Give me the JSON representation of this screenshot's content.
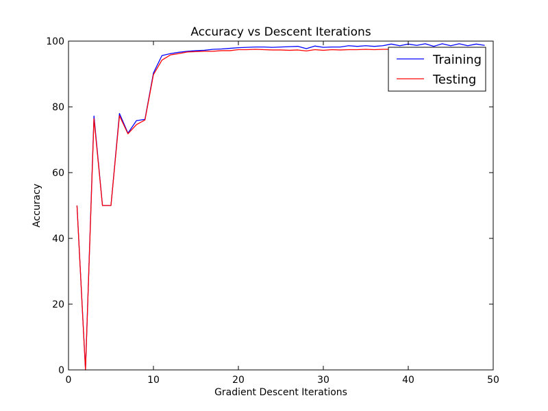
{
  "chart_data": {
    "type": "line",
    "title": "Accuracy vs Descent Iterations",
    "xlabel": "Gradient Descent Iterations",
    "ylabel": "Accuracy",
    "xlim": [
      0,
      50
    ],
    "ylim": [
      0,
      100
    ],
    "xticks": [
      0,
      10,
      20,
      30,
      40,
      50
    ],
    "yticks": [
      0,
      20,
      40,
      60,
      80,
      100
    ],
    "grid": false,
    "legend_position": "top-right",
    "x": [
      1,
      2,
      3,
      4,
      5,
      6,
      7,
      8,
      9,
      10,
      11,
      12,
      13,
      14,
      15,
      16,
      17,
      18,
      19,
      20,
      21,
      22,
      23,
      24,
      25,
      26,
      27,
      28,
      29,
      30,
      31,
      32,
      33,
      34,
      35,
      36,
      37,
      38,
      39,
      40,
      41,
      42,
      43,
      44,
      45,
      46,
      47,
      48,
      49
    ],
    "series": [
      {
        "name": "Training",
        "color": "#0000ff",
        "values": [
          50,
          0,
          77.2,
          50,
          50,
          78,
          72,
          75.8,
          76.2,
          90.3,
          95.6,
          96.2,
          96.6,
          96.9,
          97.1,
          97.2,
          97.5,
          97.6,
          97.8,
          98,
          98.1,
          98.2,
          98.2,
          98.1,
          98.2,
          98.3,
          98.4,
          97.7,
          98.5,
          98.1,
          98.2,
          98.2,
          98.6,
          98.4,
          98.6,
          98.4,
          98.6,
          99.1,
          98.6,
          99.1,
          98.7,
          99.2,
          98.4,
          99.2,
          98.6,
          99.2,
          98.6,
          99.1,
          98.7
        ]
      },
      {
        "name": "Testing",
        "color": "#ff0000",
        "values": [
          50,
          0,
          76.4,
          50,
          50,
          77.3,
          71.8,
          74.6,
          76,
          89.8,
          94.2,
          95.8,
          96.2,
          96.7,
          96.8,
          96.9,
          96.9,
          97.1,
          97.1,
          97.4,
          97.4,
          97.5,
          97.4,
          97.3,
          97.3,
          97.2,
          97.3,
          97,
          97.4,
          97.2,
          97.4,
          97.3,
          97.4,
          97.4,
          97.5,
          97.4,
          97.5,
          97.5,
          97.5,
          97.6,
          97.5,
          97.6,
          97.5,
          97.6,
          97.5,
          97.6,
          97.6,
          97.6,
          97.6
        ]
      }
    ]
  }
}
